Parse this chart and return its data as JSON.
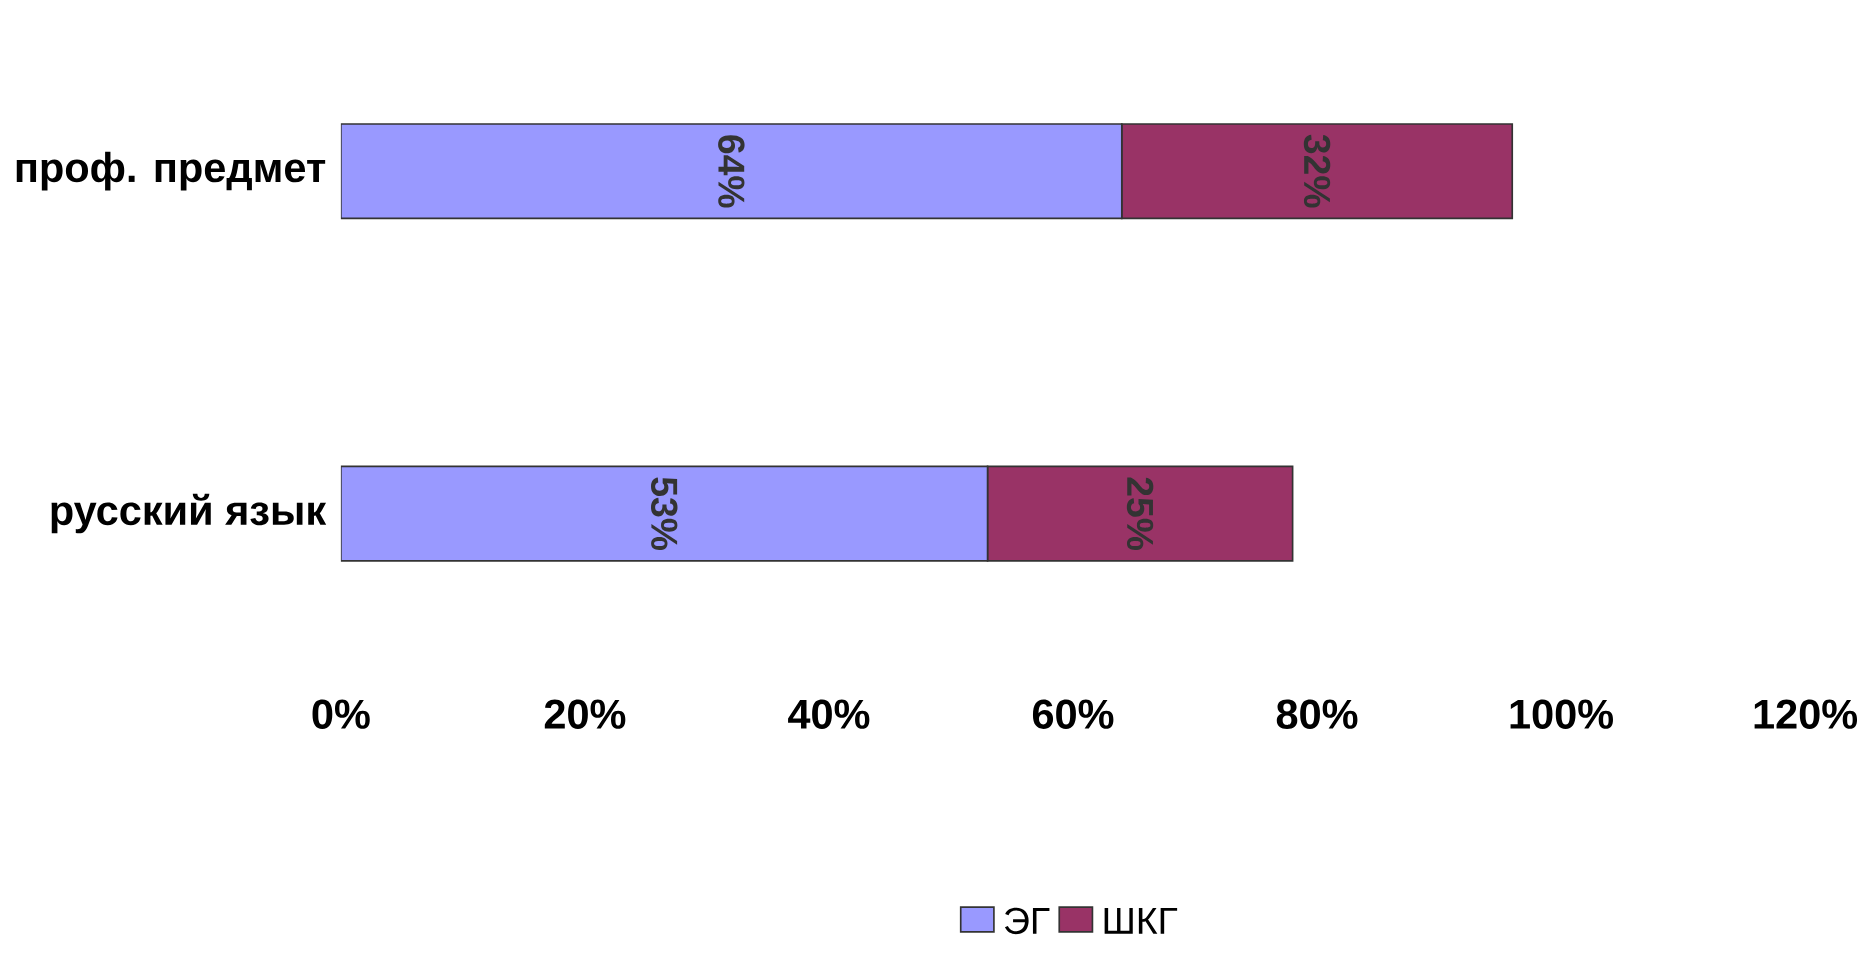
{
  "chart_data": {
    "type": "bar",
    "orientation": "horizontal",
    "stacked": true,
    "categories": [
      "проф. предмет",
      "русский язык"
    ],
    "series": [
      {
        "name": "ЭГ",
        "color": "#9999ff",
        "values": [
          64,
          53
        ],
        "value_labels": [
          "64%",
          "53%"
        ]
      },
      {
        "name": "ШКГ",
        "color": "#993366",
        "values": [
          32,
          25
        ],
        "value_labels": [
          "32%",
          "25%"
        ]
      }
    ],
    "xlim": [
      0,
      120
    ],
    "xticks": [
      {
        "value": 0,
        "label": "0%"
      },
      {
        "value": 20,
        "label": "20%"
      },
      {
        "value": 40,
        "label": "40%"
      },
      {
        "value": 60,
        "label": "60%"
      },
      {
        "value": 80,
        "label": "80%"
      },
      {
        "value": 100,
        "label": "100%"
      },
      {
        "value": 120,
        "label": "120%"
      }
    ],
    "grid": false,
    "legend": "bottom"
  }
}
